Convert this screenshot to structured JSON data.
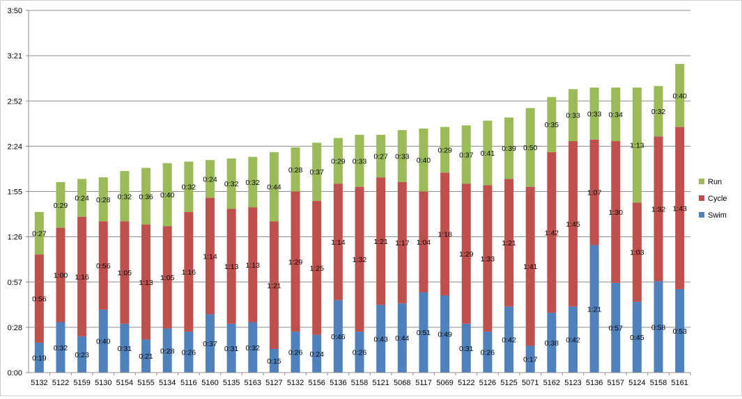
{
  "chart_data": {
    "type": "bar",
    "stacked": true,
    "title": "",
    "xlabel": "",
    "ylabel": "",
    "y_unit": "minutes",
    "ylim": [
      0,
      230
    ],
    "y_ticks": [
      "0:00",
      "0:28",
      "0:57",
      "1:26",
      "1:55",
      "2:24",
      "2:52",
      "3:21",
      "3:50"
    ],
    "grid": true,
    "legend_position": "right",
    "categories": [
      "5132",
      "5122",
      "5159",
      "5130",
      "5154",
      "5155",
      "5134",
      "5116",
      "5160",
      "5135",
      "5163",
      "5127",
      "5132",
      "5156",
      "5136",
      "5158",
      "5121",
      "5068",
      "5117",
      "5069",
      "5122",
      "5126",
      "5125",
      "5071",
      "5162",
      "5123",
      "5136",
      "5157",
      "5124",
      "5158",
      "5161"
    ],
    "series": [
      {
        "name": "Swim",
        "color": "#4f81bd",
        "values": [
          19,
          32,
          23,
          40,
          31,
          21,
          28,
          26,
          37,
          31,
          32,
          15,
          26,
          24,
          46,
          26,
          43,
          44,
          51,
          49,
          31,
          26,
          42,
          17,
          38,
          42,
          81,
          57,
          45,
          58,
          53
        ],
        "labels": [
          "0:19",
          "0:32",
          "0:23",
          "0:40",
          "0:31",
          "0:21",
          "0:28",
          "0:26",
          "0:37",
          "0:31",
          "0:32",
          "0:15",
          "0:26",
          "0:24",
          "0:46",
          "0:26",
          "0:43",
          "0:44",
          "0:51",
          "0:49",
          "0:31",
          "0:26",
          "0:42",
          "0:17",
          "0:38",
          "0:42",
          "1:21",
          "0:57",
          "0:45",
          "0:58",
          "0:53"
        ]
      },
      {
        "name": "Cycle",
        "color": "#c0504d",
        "values": [
          56,
          60,
          76,
          56,
          65,
          73,
          65,
          76,
          74,
          73,
          73,
          81,
          89,
          85,
          74,
          92,
          81,
          77,
          64,
          78,
          89,
          93,
          81,
          101,
          102,
          105,
          67,
          90,
          63,
          92,
          103
        ],
        "labels": [
          "0:56",
          "1:00",
          "1:16",
          "0:56",
          "1:05",
          "1:13",
          "1:05",
          "1:16",
          "1:14",
          "1:13",
          "1:13",
          "1:21",
          "1:29",
          "1:25",
          "1:14",
          "1:32",
          "1:21",
          "1:17",
          "1:04",
          "1:18",
          "1:29",
          "1:33",
          "1:21",
          "1:41",
          "1:42",
          "1:45",
          "1:07",
          "1:30",
          "1:03",
          "1:32",
          "1:43"
        ]
      },
      {
        "name": "Run",
        "color": "#9bbb59",
        "values": [
          27,
          29,
          24,
          28,
          32,
          36,
          40,
          32,
          24,
          32,
          32,
          44,
          28,
          37,
          29,
          33,
          27,
          33,
          40,
          29,
          37,
          41,
          39,
          50,
          35,
          33,
          33,
          34,
          73,
          32,
          40
        ],
        "labels": [
          "0:27",
          "0:29",
          "0:24",
          "0:28",
          "0:32",
          "0:36",
          "0:40",
          "0:32",
          "0:24",
          "0:32",
          "0:32",
          "0:44",
          "0:28",
          "0:37",
          "0:29",
          "0:33",
          "0:27",
          "0:33",
          "0:40",
          "0:29",
          "0:37",
          "0:41",
          "0:39",
          "0:50",
          "0:35",
          "0:33",
          "0:33",
          "0:34",
          "1:13",
          "0:32",
          "0:40"
        ]
      }
    ]
  }
}
